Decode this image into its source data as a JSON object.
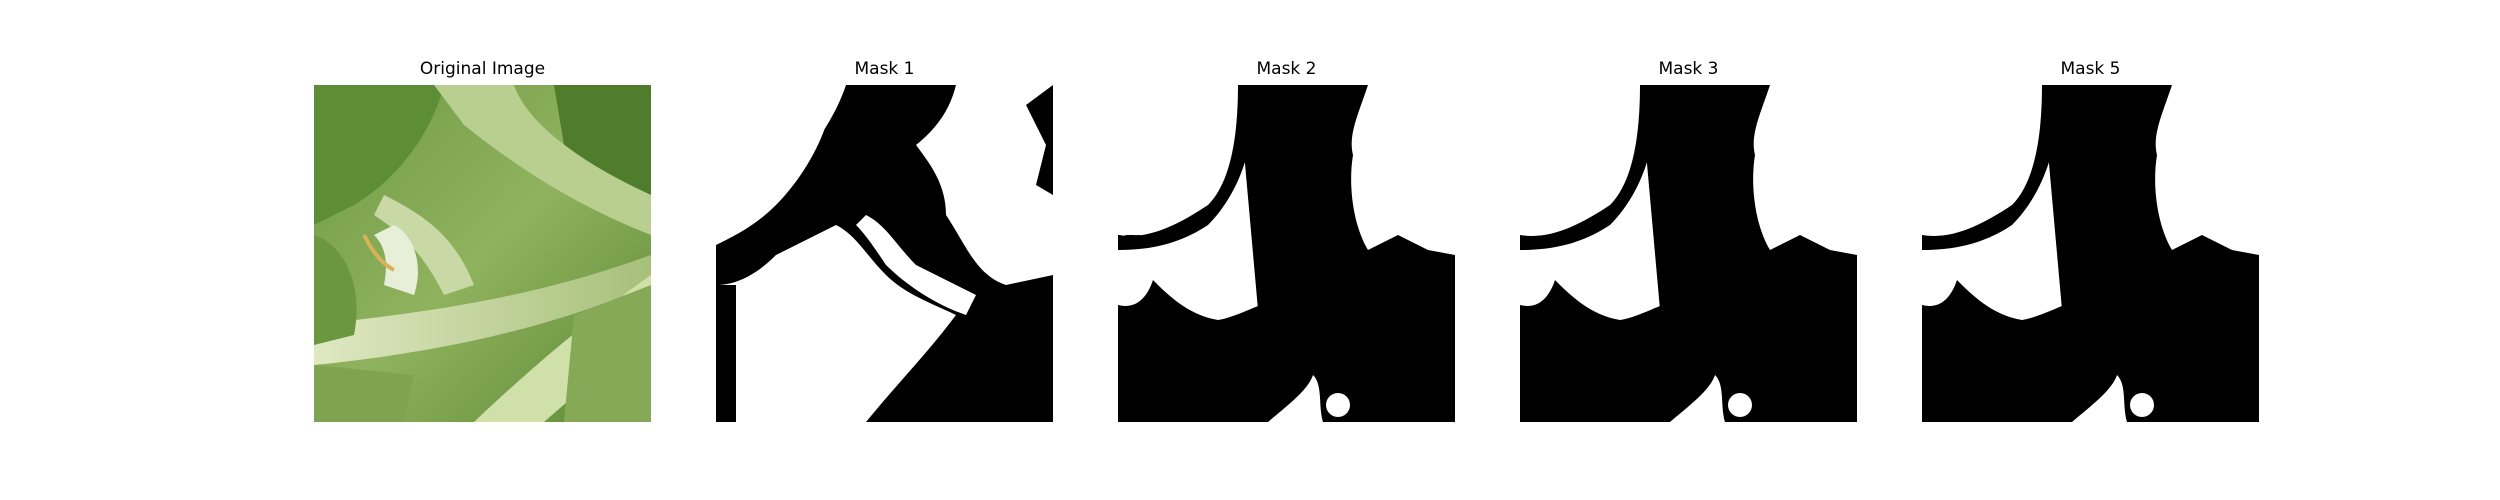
{
  "figure": {
    "panels": [
      {
        "title": "Original Image"
      },
      {
        "title": "Mask 1"
      },
      {
        "title": "Mask 2"
      },
      {
        "title": "Mask 3"
      },
      {
        "title": "Mask 5"
      }
    ]
  },
  "colors": {
    "mask_foreground": "#ffffff",
    "mask_background": "#000000",
    "leaf_dark": "#4f7a2e",
    "leaf_light": "#a9c57a",
    "stem": "#c9d9a4"
  }
}
